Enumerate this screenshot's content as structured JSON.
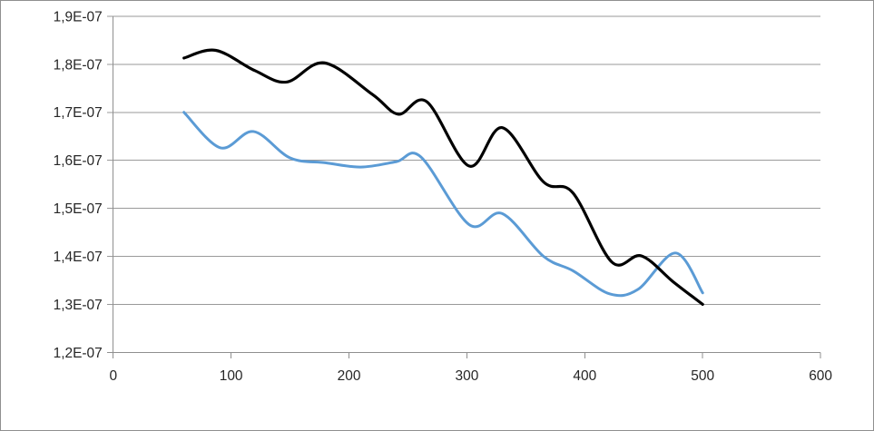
{
  "chart_data": {
    "type": "line",
    "subtype": "smooth-scatter-no-markers",
    "title": "",
    "legend": "none",
    "background_color": "#ffffff",
    "border_color": "#8f8f8f",
    "gridline_color": "#9a9a9a",
    "axis_color": "#8f8f8f",
    "label_color": "#262626",
    "grid": "horizontal-only",
    "x_axis": {
      "min": 0,
      "max": 600,
      "tick_values": [
        0,
        100,
        200,
        300,
        400,
        500,
        600
      ],
      "tick_labels": [
        "0",
        "100",
        "200",
        "300",
        "400",
        "500",
        "600"
      ]
    },
    "y_axis": {
      "min": 1.2e-07,
      "max": 1.9e-07,
      "tick_values": [
        1.2e-07,
        1.3e-07,
        1.4e-07,
        1.5e-07,
        1.6e-07,
        1.7e-07,
        1.8e-07,
        1.9e-07
      ],
      "tick_labels": [
        "1,2E-07",
        "1,3E-07",
        "1,4E-07",
        "1,5E-07",
        "1,6E-07",
        "1,7E-07",
        "1,8E-07",
        "1,9E-07"
      ]
    },
    "series": [
      {
        "name": "blue",
        "color": "#5B9BD5",
        "stroke_width": 3,
        "points": [
          [
            60,
            1.7e-07
          ],
          [
            91,
            1.626e-07
          ],
          [
            119,
            1.66e-07
          ],
          [
            150,
            1.605e-07
          ],
          [
            180,
            1.595e-07
          ],
          [
            210,
            1.586e-07
          ],
          [
            240,
            1.597e-07
          ],
          [
            261,
            1.607e-07
          ],
          [
            302,
            1.466e-07
          ],
          [
            330,
            1.489e-07
          ],
          [
            365,
            1.4e-07
          ],
          [
            390,
            1.37e-07
          ],
          [
            421,
            1.322e-07
          ],
          [
            445,
            1.331e-07
          ],
          [
            477,
            1.407e-07
          ],
          [
            500,
            1.324e-07
          ]
        ]
      },
      {
        "name": "black",
        "color": "#000000",
        "stroke_width": 3.2,
        "points": [
          [
            60,
            1.813e-07
          ],
          [
            87,
            1.829e-07
          ],
          [
            120,
            1.787e-07
          ],
          [
            147,
            1.763e-07
          ],
          [
            179,
            1.803e-07
          ],
          [
            220,
            1.737e-07
          ],
          [
            242,
            1.696e-07
          ],
          [
            266,
            1.722e-07
          ],
          [
            302,
            1.588e-07
          ],
          [
            330,
            1.668e-07
          ],
          [
            365,
            1.555e-07
          ],
          [
            390,
            1.532e-07
          ],
          [
            423,
            1.388e-07
          ],
          [
            448,
            1.401e-07
          ],
          [
            475,
            1.347e-07
          ],
          [
            500,
            1.3e-07
          ]
        ]
      }
    ]
  }
}
